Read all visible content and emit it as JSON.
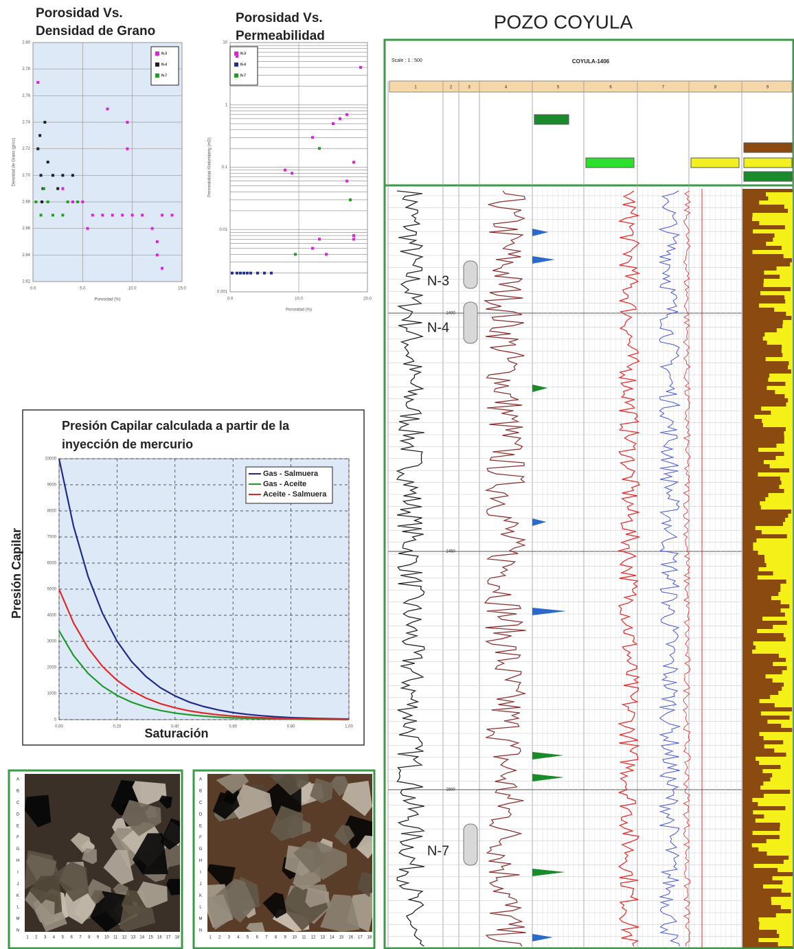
{
  "chart_data": [
    {
      "type": "scatter",
      "title": [
        "Porosidad Vs.",
        "Densidad de Grano"
      ],
      "x_label": "Porosidad (%)",
      "y_label": "Densidad de Grano (gr/cc)",
      "xlim": [
        0,
        15
      ],
      "xticks": [
        {
          "value": 0,
          "label": "0.0"
        },
        {
          "value": 5,
          "label": "5.0"
        },
        {
          "value": 10,
          "label": "10.0"
        },
        {
          "value": 15,
          "label": "15.0"
        }
      ],
      "ylim": [
        2.62,
        2.8
      ],
      "yticks": [
        {
          "value": 2.62,
          "label": "2.62"
        },
        {
          "value": 2.64,
          "label": "2.64"
        },
        {
          "value": 2.66,
          "label": "2.66"
        },
        {
          "value": 2.68,
          "label": "2.68"
        },
        {
          "value": 2.7,
          "label": "2.70"
        },
        {
          "value": 2.72,
          "label": "2.72"
        },
        {
          "value": 2.74,
          "label": "2.74"
        },
        {
          "value": 2.76,
          "label": "2.76"
        },
        {
          "value": 2.78,
          "label": "2.78"
        },
        {
          "value": 2.8,
          "label": "2.80"
        }
      ],
      "grid": true,
      "series": [
        {
          "name": "N-3",
          "color": "#e020e0",
          "x": [
            0.5,
            3,
            4,
            5,
            6,
            8,
            9,
            10,
            11,
            12,
            13,
            14,
            9.5,
            5.5,
            7.5,
            9.5,
            12.5,
            12.5,
            13,
            7
          ],
          "values": [
            2.77,
            2.69,
            2.68,
            2.68,
            2.67,
            2.67,
            2.67,
            2.67,
            2.67,
            2.66,
            2.67,
            2.67,
            2.72,
            2.66,
            2.75,
            2.74,
            2.64,
            2.65,
            2.63,
            2.67
          ]
        },
        {
          "name": "N-4",
          "color": "#202020",
          "x": [
            0.5,
            0.8,
            1,
            1.5,
            2,
            2.5,
            3,
            4,
            0.7,
            1.2,
            0.9
          ],
          "values": [
            2.72,
            2.7,
            2.69,
            2.71,
            2.7,
            2.69,
            2.7,
            2.7,
            2.73,
            2.74,
            2.68
          ]
        },
        {
          "name": "N-7",
          "color": "#20a020",
          "x": [
            0.3,
            0.8,
            1.5,
            2,
            3,
            3.5,
            4.5,
            1.1
          ],
          "values": [
            2.68,
            2.67,
            2.68,
            2.67,
            2.67,
            2.68,
            2.68,
            2.69
          ]
        }
      ]
    },
    {
      "type": "scatter",
      "title": [
        "Porosidad Vs.",
        "Permeabilidad"
      ],
      "x_label": "Porosidad (%)",
      "y_label": "Permeabilidad Klinkenberg (mD)",
      "log_y": true,
      "xlim": [
        0,
        20
      ],
      "xticks": [
        {
          "value": 0,
          "label": "0.0"
        },
        {
          "value": 10,
          "label": "10.0"
        },
        {
          "value": 20,
          "label": "20.0"
        }
      ],
      "ylim": [
        0.001,
        10
      ],
      "yticks": [
        0.001,
        0.01,
        0.1,
        1,
        10
      ],
      "grid": true,
      "series": [
        {
          "name": "N-3",
          "color": "#e020e0",
          "x": [
            1,
            12,
            15,
            16,
            17,
            18,
            19,
            17,
            9,
            12,
            13,
            14,
            18,
            18,
            8
          ],
          "values": [
            6,
            0.3,
            0.5,
            0.6,
            0.7,
            0.12,
            4,
            0.06,
            0.08,
            0.005,
            0.007,
            0.004,
            0.007,
            0.008,
            0.09
          ]
        },
        {
          "name": "N-4",
          "color": "#203090",
          "x": [
            0.3,
            1,
            1.5,
            2,
            2.5,
            3,
            4,
            5,
            6
          ],
          "values": [
            0.002,
            0.002,
            0.002,
            0.002,
            0.002,
            0.002,
            0.002,
            0.002,
            0.002
          ]
        },
        {
          "name": "N-7",
          "color": "#20a020",
          "x": [
            13,
            17.5,
            9.5
          ],
          "values": [
            0.2,
            0.03,
            0.004
          ]
        }
      ]
    },
    {
      "type": "line",
      "title": [
        "Presión Capilar calculada a partir de la",
        "inyección de mercurio"
      ],
      "x_label": "Saturación",
      "y_label": "Presión Capilar",
      "xlim": [
        0,
        1
      ],
      "xticks": [
        {
          "value": 0,
          "label": "0.00"
        },
        {
          "value": 0.2,
          "label": "0.20"
        },
        {
          "value": 0.4,
          "label": "0.40"
        },
        {
          "value": 0.6,
          "label": "0.60"
        },
        {
          "value": 0.8,
          "label": "0.80"
        },
        {
          "value": 1,
          "label": "1.00"
        }
      ],
      "ylim": [
        0,
        10000
      ],
      "yticks": [
        0,
        1000,
        2000,
        3000,
        4000,
        5000,
        6000,
        7000,
        8000,
        9000,
        10000
      ],
      "grid": true,
      "x": [
        0,
        0.05,
        0.1,
        0.15,
        0.2,
        0.25,
        0.3,
        0.35,
        0.4,
        0.45,
        0.5,
        0.55,
        0.6,
        0.65,
        0.7,
        0.75,
        0.8,
        0.85,
        0.9,
        0.95,
        1
      ],
      "series": [
        {
          "name": "Gas - Salmuera",
          "color": "#1f2a8a",
          "values": [
            10000,
            7410,
            5490,
            4070,
            3010,
            2230,
            1650,
            1220,
            910,
            670,
            500,
            370,
            270,
            200,
            150,
            110,
            80,
            60,
            45,
            33,
            25
          ]
        },
        {
          "name": "Gas - Aceite",
          "color": "#1d9a2a",
          "values": [
            3400,
            2458,
            1775,
            1282,
            928,
            670,
            483,
            350,
            252,
            184,
            133,
            95,
            68,
            51,
            37,
            27,
            20,
            14,
            10,
            7,
            5
          ]
        },
        {
          "name": "Aceite - Salmuera",
          "color": "#e02828",
          "values": [
            5000,
            3705,
            2745,
            2035,
            1505,
            1115,
            825,
            610,
            455,
            335,
            250,
            185,
            135,
            100,
            75,
            55,
            40,
            30,
            22,
            16,
            12
          ]
        }
      ]
    }
  ],
  "well_log": {
    "title": "POZO COYULA",
    "scale": "Scale : 1 : 500",
    "well": "COYULA-1406",
    "tracks": [
      "1",
      "2",
      "3",
      "4",
      "5",
      "6",
      "7",
      "8",
      "9"
    ],
    "depths": [
      "1400",
      "1450",
      "1500"
    ],
    "zones": [
      "N-3",
      "N-4",
      "N-7"
    ]
  },
  "thin_sections": {
    "rows": [
      "A",
      "B",
      "C",
      "D",
      "E",
      "F",
      "G",
      "H",
      "I",
      "J",
      "K",
      "L",
      "M",
      "N"
    ],
    "columns": [
      "1",
      "2",
      "3",
      "4",
      "5",
      "6",
      "7",
      "8",
      "9",
      "10",
      "11",
      "12",
      "13",
      "14",
      "15",
      "16",
      "17",
      "18"
    ]
  }
}
